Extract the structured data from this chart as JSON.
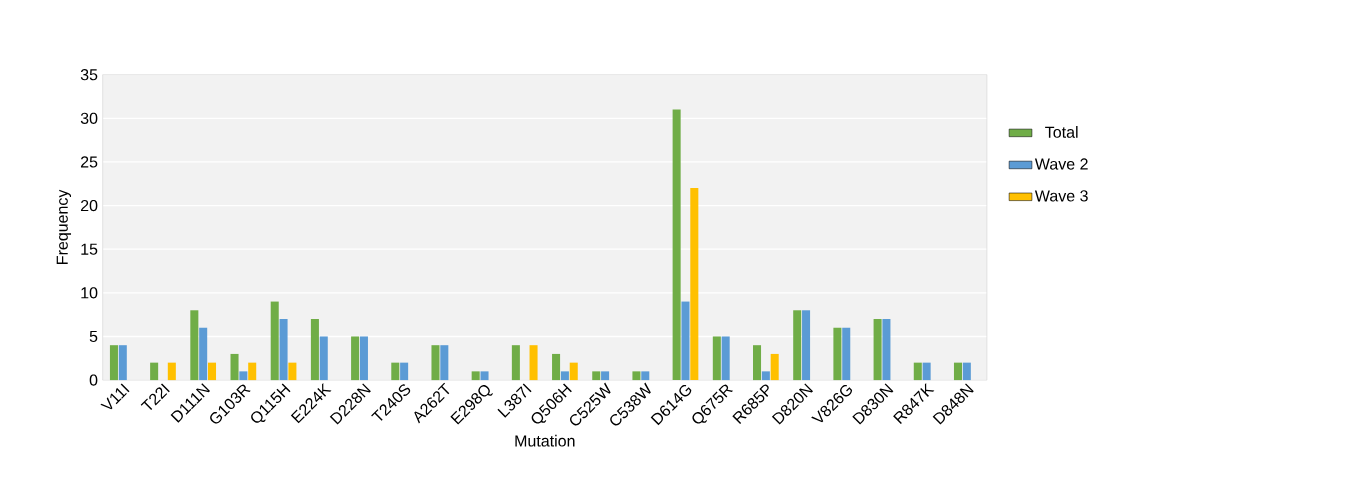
{
  "chart_data": {
    "type": "bar",
    "xlabel": "Mutation",
    "ylabel": "Frequency",
    "categories": [
      "V11I",
      "T22I",
      "D111N",
      "G103R",
      "Q115H",
      "E224K",
      "D228N",
      "T240S",
      "A262T",
      "E298Q",
      "L387I",
      "Q506H",
      "C525W",
      "C538W",
      "D614G",
      "Q675R",
      "R685P",
      "D820N",
      "V826G",
      "D830N",
      "R847K",
      "D848N"
    ],
    "series": [
      {
        "name": "Total",
        "color": "#70ad47",
        "values": [
          4,
          2,
          8,
          3,
          9,
          7,
          5,
          2,
          4,
          1,
          4,
          3,
          1,
          1,
          31,
          5,
          4,
          8,
          6,
          7,
          2,
          2
        ]
      },
      {
        "name": "Wave 2",
        "color": "#5b9bd5",
        "values": [
          4,
          null,
          6,
          1,
          7,
          5,
          5,
          2,
          4,
          1,
          null,
          1,
          1,
          1,
          9,
          5,
          1,
          8,
          6,
          7,
          2,
          2
        ]
      },
      {
        "name": "Wave 3",
        "color": "#ffc000",
        "values": [
          null,
          2,
          2,
          2,
          2,
          null,
          null,
          null,
          null,
          null,
          4,
          2,
          null,
          null,
          22,
          null,
          3,
          null,
          null,
          null,
          null,
          null
        ]
      }
    ],
    "ylim": [
      0,
      35
    ],
    "yticks": [
      0,
      5,
      10,
      15,
      20,
      25,
      30,
      35
    ],
    "grid": "y",
    "legend": "right"
  }
}
